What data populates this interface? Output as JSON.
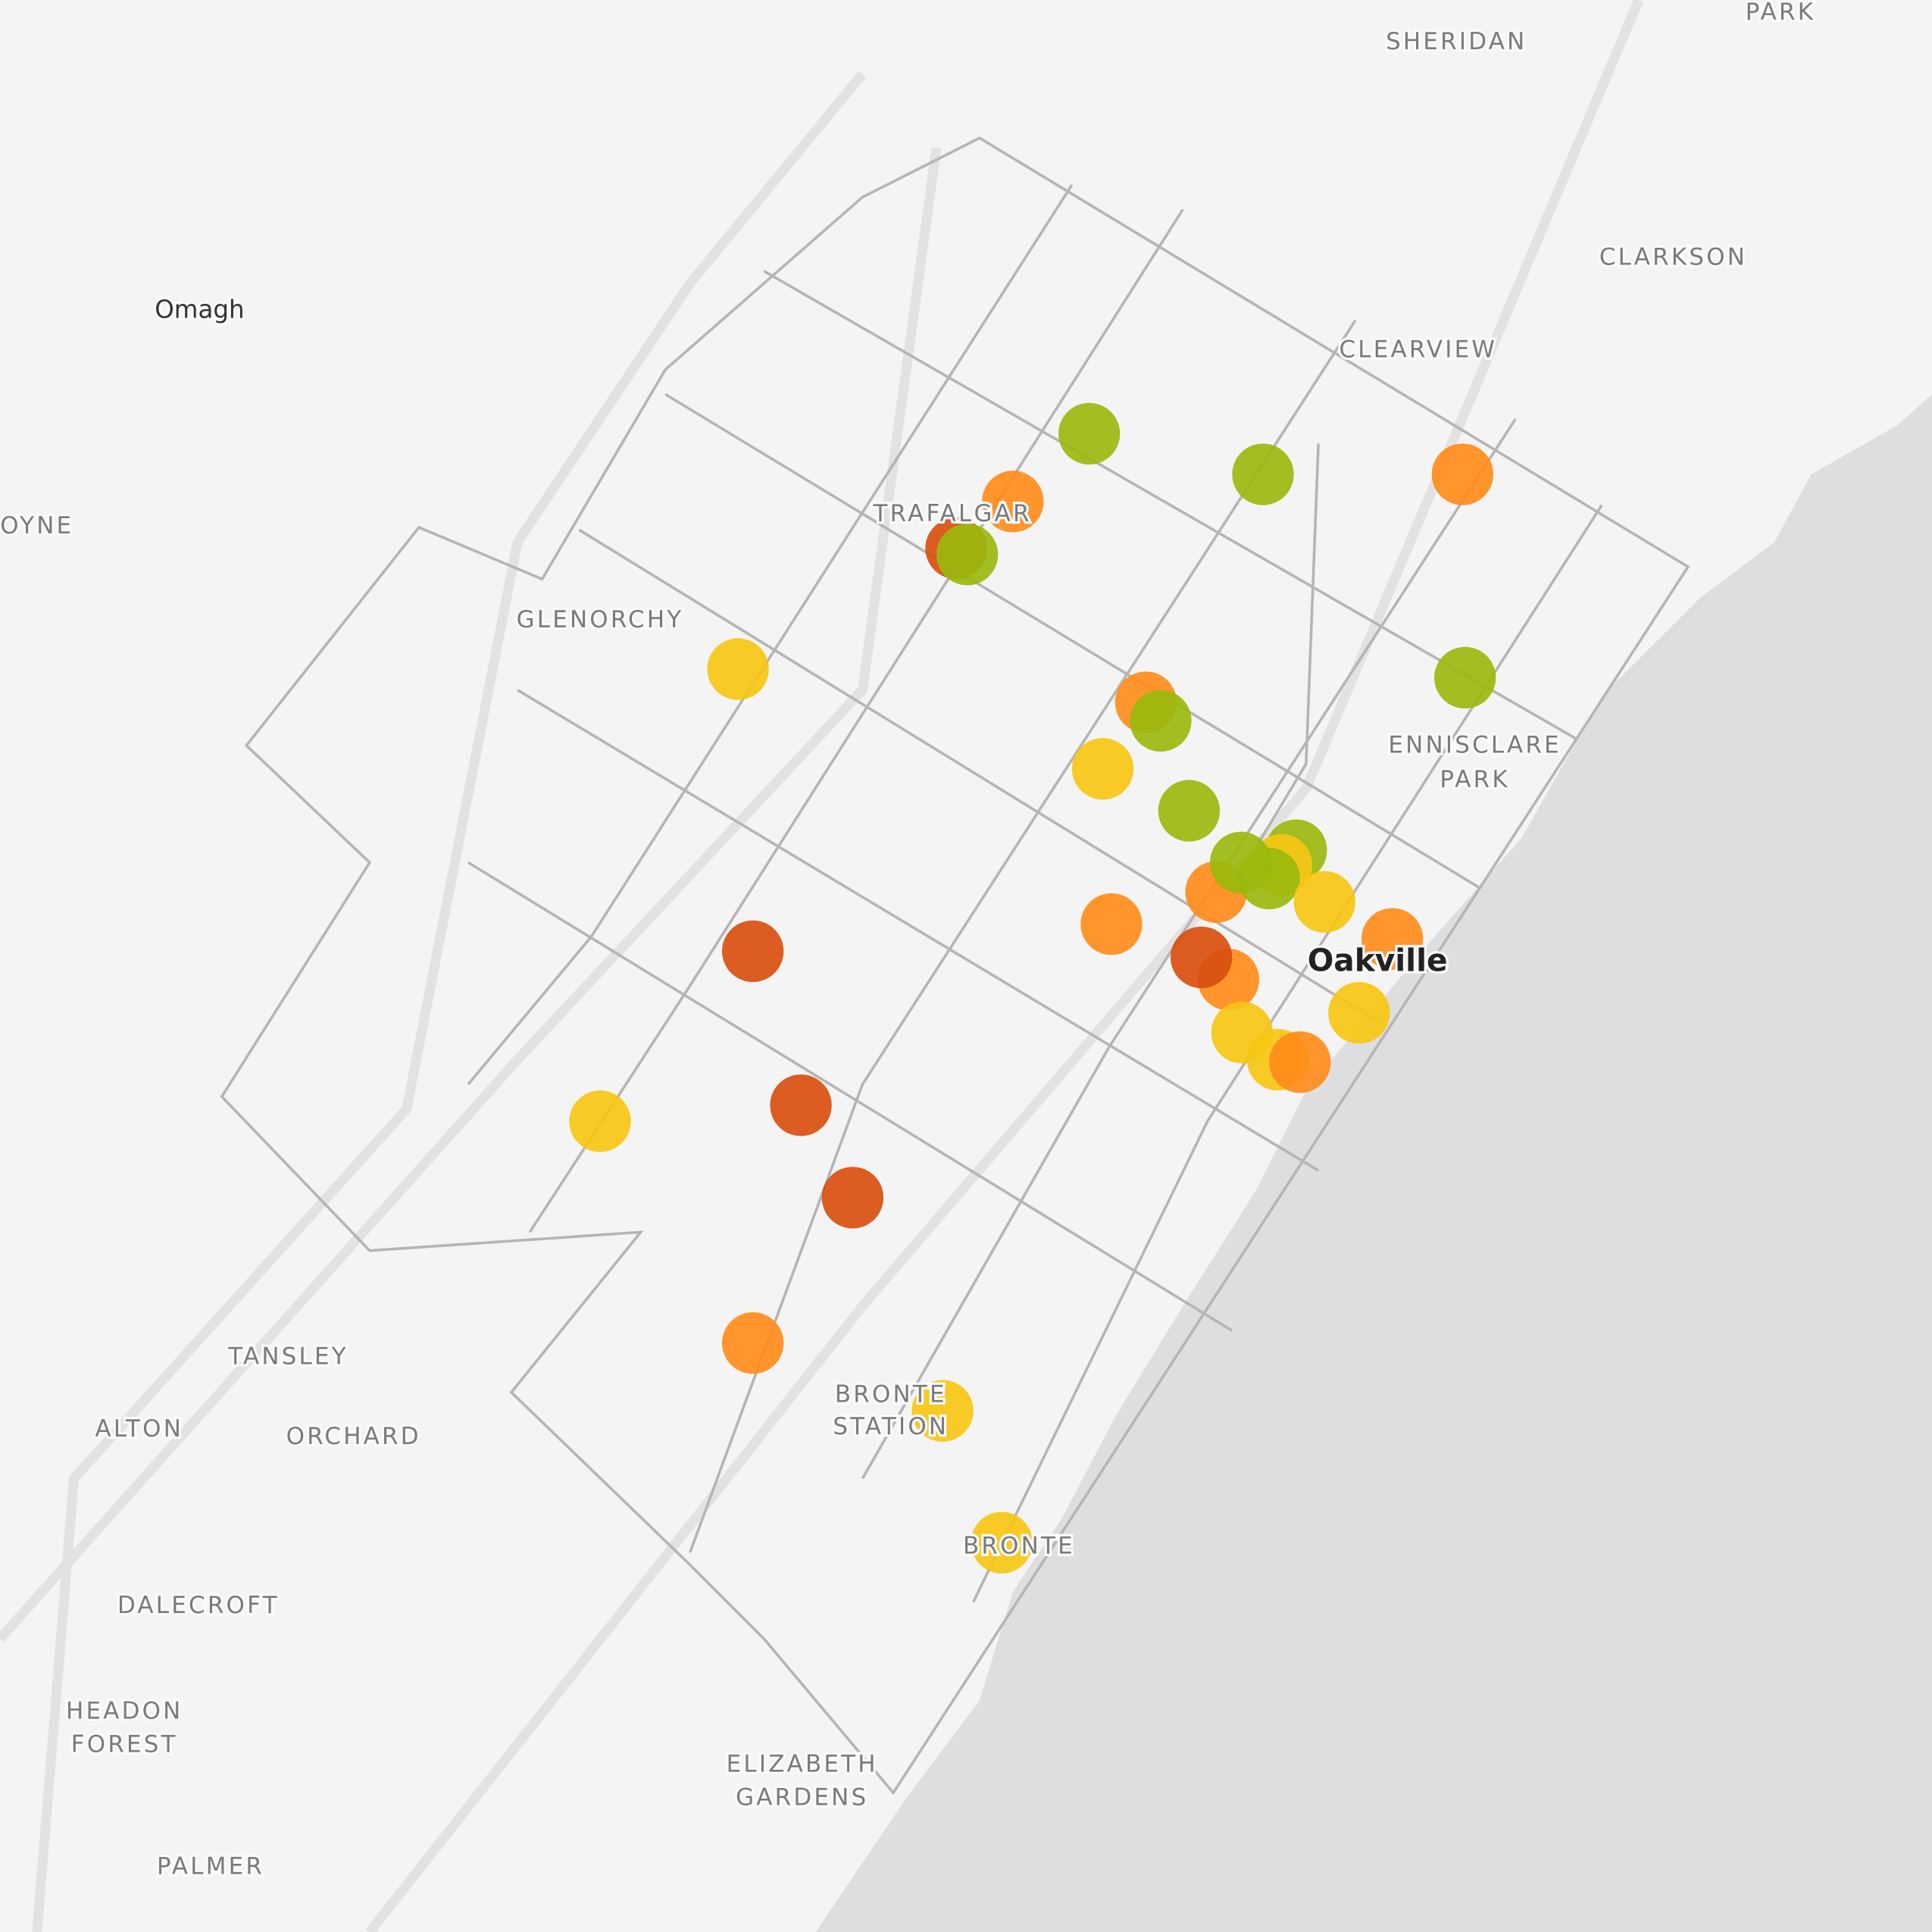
{
  "places": [
    {
      "lines": [
        "SHERIDAN"
      ]
    },
    {
      "lines": [
        "PARK"
      ]
    },
    {
      "lines": [
        "CLARKSON"
      ]
    },
    {
      "lines": [
        "Omagh"
      ]
    },
    {
      "lines": [
        "CLEARVIEW"
      ]
    },
    {
      "lines": [
        "OYNE"
      ]
    },
    {
      "lines": [
        "TRAFALGAR"
      ]
    },
    {
      "lines": [
        "GLENORCHY"
      ]
    },
    {
      "lines": [
        "ENNISCLARE",
        "PARK"
      ]
    },
    {
      "lines": [
        "Oakville"
      ]
    },
    {
      "lines": [
        "TANSLEY"
      ]
    },
    {
      "lines": [
        "ALTON"
      ]
    },
    {
      "lines": [
        "ORCHARD"
      ]
    },
    {
      "lines": [
        "BRONTE",
        "STATION"
      ]
    },
    {
      "lines": [
        "BRONTE"
      ]
    },
    {
      "lines": [
        "DALECROFT"
      ]
    },
    {
      "lines": [
        "HEADON",
        "FOREST"
      ]
    },
    {
      "lines": [
        "ELIZABETH",
        "GARDENS"
      ]
    },
    {
      "lines": [
        "PALMER"
      ]
    }
  ]
}
